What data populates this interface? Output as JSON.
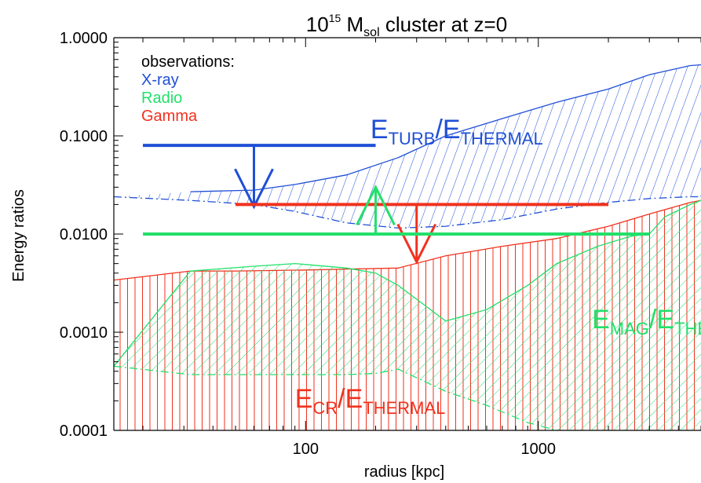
{
  "chart_data": {
    "type": "area",
    "title": {
      "pre": "10",
      "sup": "15",
      "mid": " M",
      "sub": "sol",
      "post": "  cluster at z=0"
    },
    "xlabel": "radius [kpc]",
    "ylabel": "Energy ratios",
    "x_scale": "log",
    "y_scale": "log",
    "xlim": [
      15,
      5000
    ],
    "ylim": [
      0.0001,
      1.0
    ],
    "x_ticks": [
      {
        "value": 100,
        "label": "100"
      },
      {
        "value": 1000,
        "label": "1000"
      }
    ],
    "y_ticks": [
      {
        "value": 0.0001,
        "label": "0.0001"
      },
      {
        "value": 0.001,
        "label": "0.0010"
      },
      {
        "value": 0.01,
        "label": "0.0100"
      },
      {
        "value": 0.1,
        "label": "0.1000"
      },
      {
        "value": 1.0,
        "label": "1.0000"
      }
    ],
    "legend": {
      "placement": "top-left",
      "header": "observations:",
      "entries": [
        {
          "label": "X-ray",
          "color": "#1f4fd6"
        },
        {
          "label": "Radio",
          "color": "#22e06a"
        },
        {
          "label": "Gamma",
          "color": "#f0321e"
        }
      ]
    },
    "regions": [
      {
        "id": "turb",
        "color": "#1f4fd6",
        "label": {
          "main": "E",
          "sub1": "TURB",
          "slash": "/E",
          "sub2": "THERMAL"
        },
        "label_at": [
          190,
          0.095
        ],
        "upper": {
          "x": [
            32,
            60,
            90,
            150,
            250,
            400,
            700,
            1200,
            2000,
            3000,
            4500,
            5000
          ],
          "y": [
            0.027,
            0.028,
            0.032,
            0.04,
            0.06,
            0.1,
            0.15,
            0.22,
            0.3,
            0.42,
            0.52,
            0.53
          ]
        },
        "lower": {
          "x": [
            15,
            32,
            60,
            90,
            150,
            250,
            400,
            700,
            1200,
            2000,
            3000,
            4500,
            5000
          ],
          "y": [
            0.024,
            0.022,
            0.02,
            0.017,
            0.013,
            0.0115,
            0.012,
            0.014,
            0.018,
            0.021,
            0.023,
            0.024,
            0.024
          ]
        }
      },
      {
        "id": "cr",
        "color": "#f0321e",
        "label": {
          "main": "E",
          "sub1": "CR",
          "slash": "/E",
          "sub2": "THERMAL"
        },
        "label_at": [
          90,
          0.00017
        ],
        "upper": {
          "x": [
            15,
            32,
            50,
            100,
            150,
            250,
            400,
            700,
            1200,
            2000,
            3000,
            4500,
            5000
          ],
          "y": [
            0.0034,
            0.0042,
            0.0042,
            0.0043,
            0.0044,
            0.0045,
            0.006,
            0.0075,
            0.009,
            0.012,
            0.016,
            0.021,
            0.022
          ]
        },
        "lower": {
          "x": [
            15,
            5000
          ],
          "y": [
            0.0001,
            0.0001
          ]
        }
      },
      {
        "id": "mag",
        "color": "#22e06a",
        "label": {
          "main": "E",
          "sub1": "MAG",
          "slash": "/E",
          "sub2": "THERMAL"
        },
        "label_at": [
          1700,
          0.0011
        ],
        "upper": {
          "x": [
            15,
            32,
            60,
            90,
            150,
            200,
            250,
            400,
            600,
            900,
            1200,
            1800,
            2500,
            3000,
            3500,
            4500,
            5000
          ],
          "y": [
            0.00045,
            0.0042,
            0.0047,
            0.005,
            0.0045,
            0.004,
            0.003,
            0.0013,
            0.0017,
            0.003,
            0.005,
            0.0075,
            0.0095,
            0.01,
            0.015,
            0.02,
            0.022
          ]
        },
        "lower": {
          "x": [
            15,
            32,
            60,
            90,
            150,
            200,
            250,
            400,
            600,
            900,
            1200,
            2500,
            3500,
            5000
          ],
          "y": [
            0.00045,
            0.00037,
            0.00037,
            0.00037,
            0.00037,
            0.00038,
            0.00042,
            0.00025,
            0.00018,
            0.00012,
            0.0001,
            0.0001,
            0.0001,
            0.0001
          ]
        }
      }
    ],
    "observations": [
      {
        "name": "X-ray",
        "color": "#1f4fd6",
        "type": "upper_limit",
        "x_range": [
          20,
          200
        ],
        "y": 0.08,
        "arrow_x": 60,
        "arrow_to": 0.019
      },
      {
        "name": "Gamma",
        "color": "#f0321e",
        "type": "upper_limit",
        "x_range": [
          50,
          2000
        ],
        "y": 0.02,
        "arrow_x": 300,
        "arrow_to": 0.0052
      },
      {
        "name": "Radio",
        "color": "#22e06a",
        "type": "lower_limit",
        "x_range": [
          20,
          3000
        ],
        "y": 0.01,
        "arrow_x": 200,
        "arrow_to": 0.03
      }
    ]
  }
}
